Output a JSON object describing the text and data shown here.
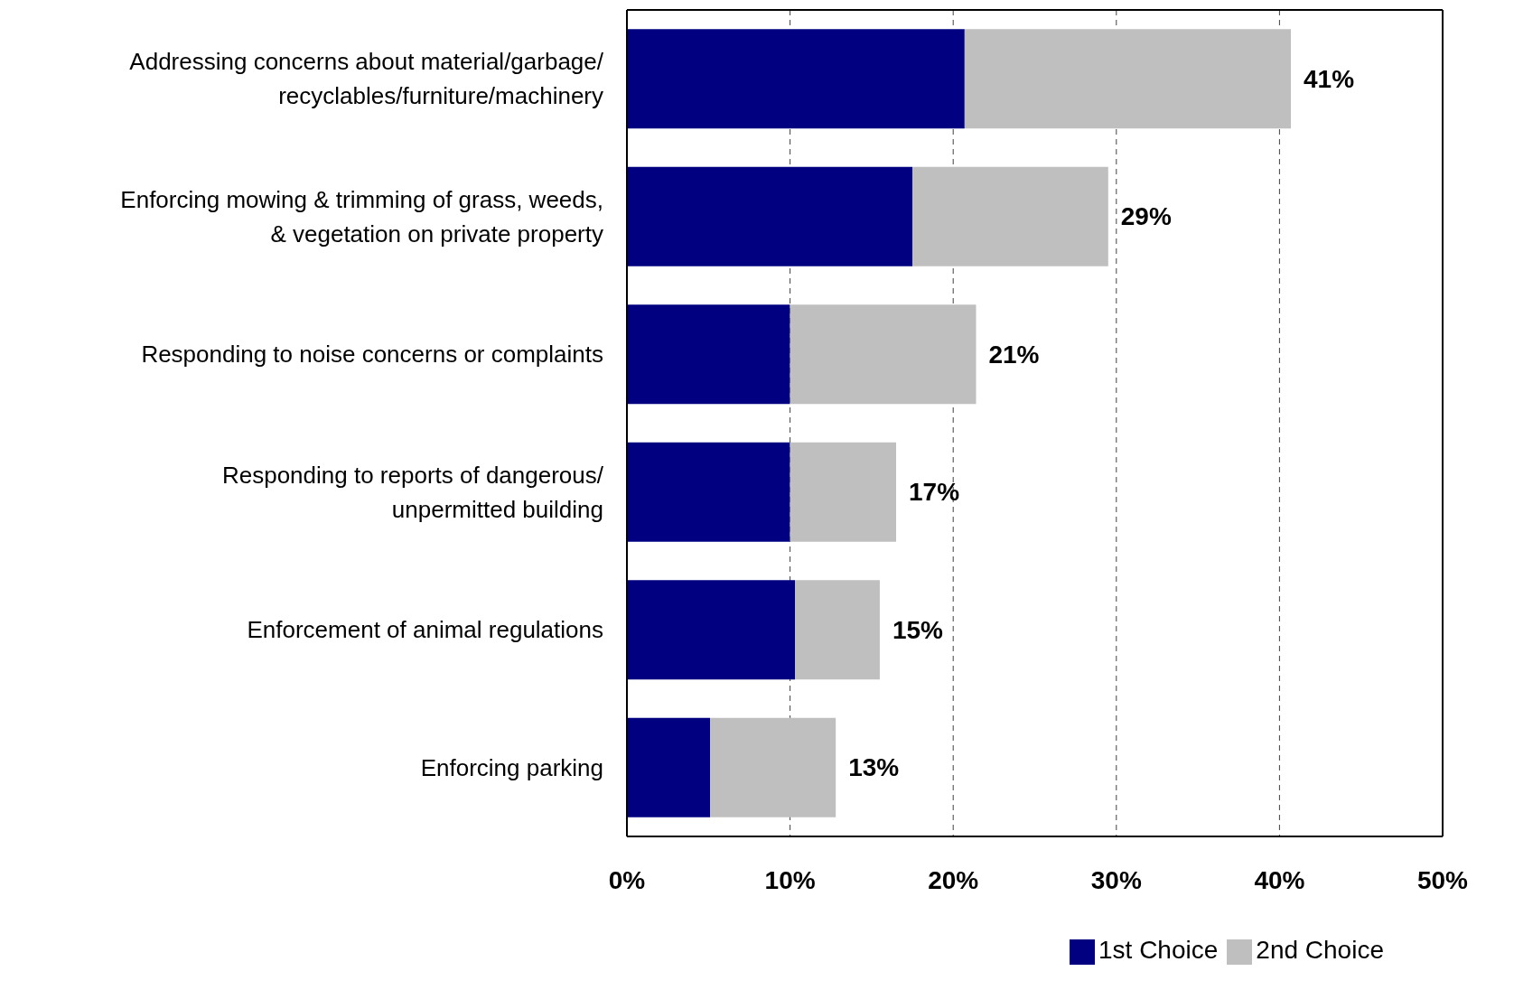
{
  "chart_data": {
    "type": "bar",
    "orientation": "horizontal",
    "stacked": true,
    "categories": [
      "Addressing concerns about material/garbage/recyclables/furniture/machinery",
      "Enforcing mowing & trimming of grass, weeds, & vegetation on private property",
      "Responding to noise concerns or complaints",
      "Responding to reports of dangerous/unpermitted building",
      "Enforcement of animal regulations",
      "Enforcing parking"
    ],
    "series": [
      {
        "name": "1st Choice",
        "color": "#000080",
        "values": [
          20.7,
          17.5,
          10.0,
          10.0,
          10.3,
          5.1
        ]
      },
      {
        "name": "2nd Choice",
        "color": "#bfbfbf",
        "values": [
          20.0,
          12.0,
          11.4,
          6.5,
          5.2,
          7.7
        ]
      }
    ],
    "totals": [
      "41%",
      "29%",
      "21%",
      "17%",
      "15%",
      "13%"
    ],
    "xlim": [
      0,
      50
    ],
    "xticks": [
      {
        "value": 0,
        "label": "0%"
      },
      {
        "value": 10,
        "label": "10%"
      },
      {
        "value": 20,
        "label": "20%"
      },
      {
        "value": 30,
        "label": "30%"
      },
      {
        "value": 40,
        "label": "40%"
      },
      {
        "value": 50,
        "label": "50%"
      }
    ],
    "grid": "x",
    "legend": "bottom"
  }
}
